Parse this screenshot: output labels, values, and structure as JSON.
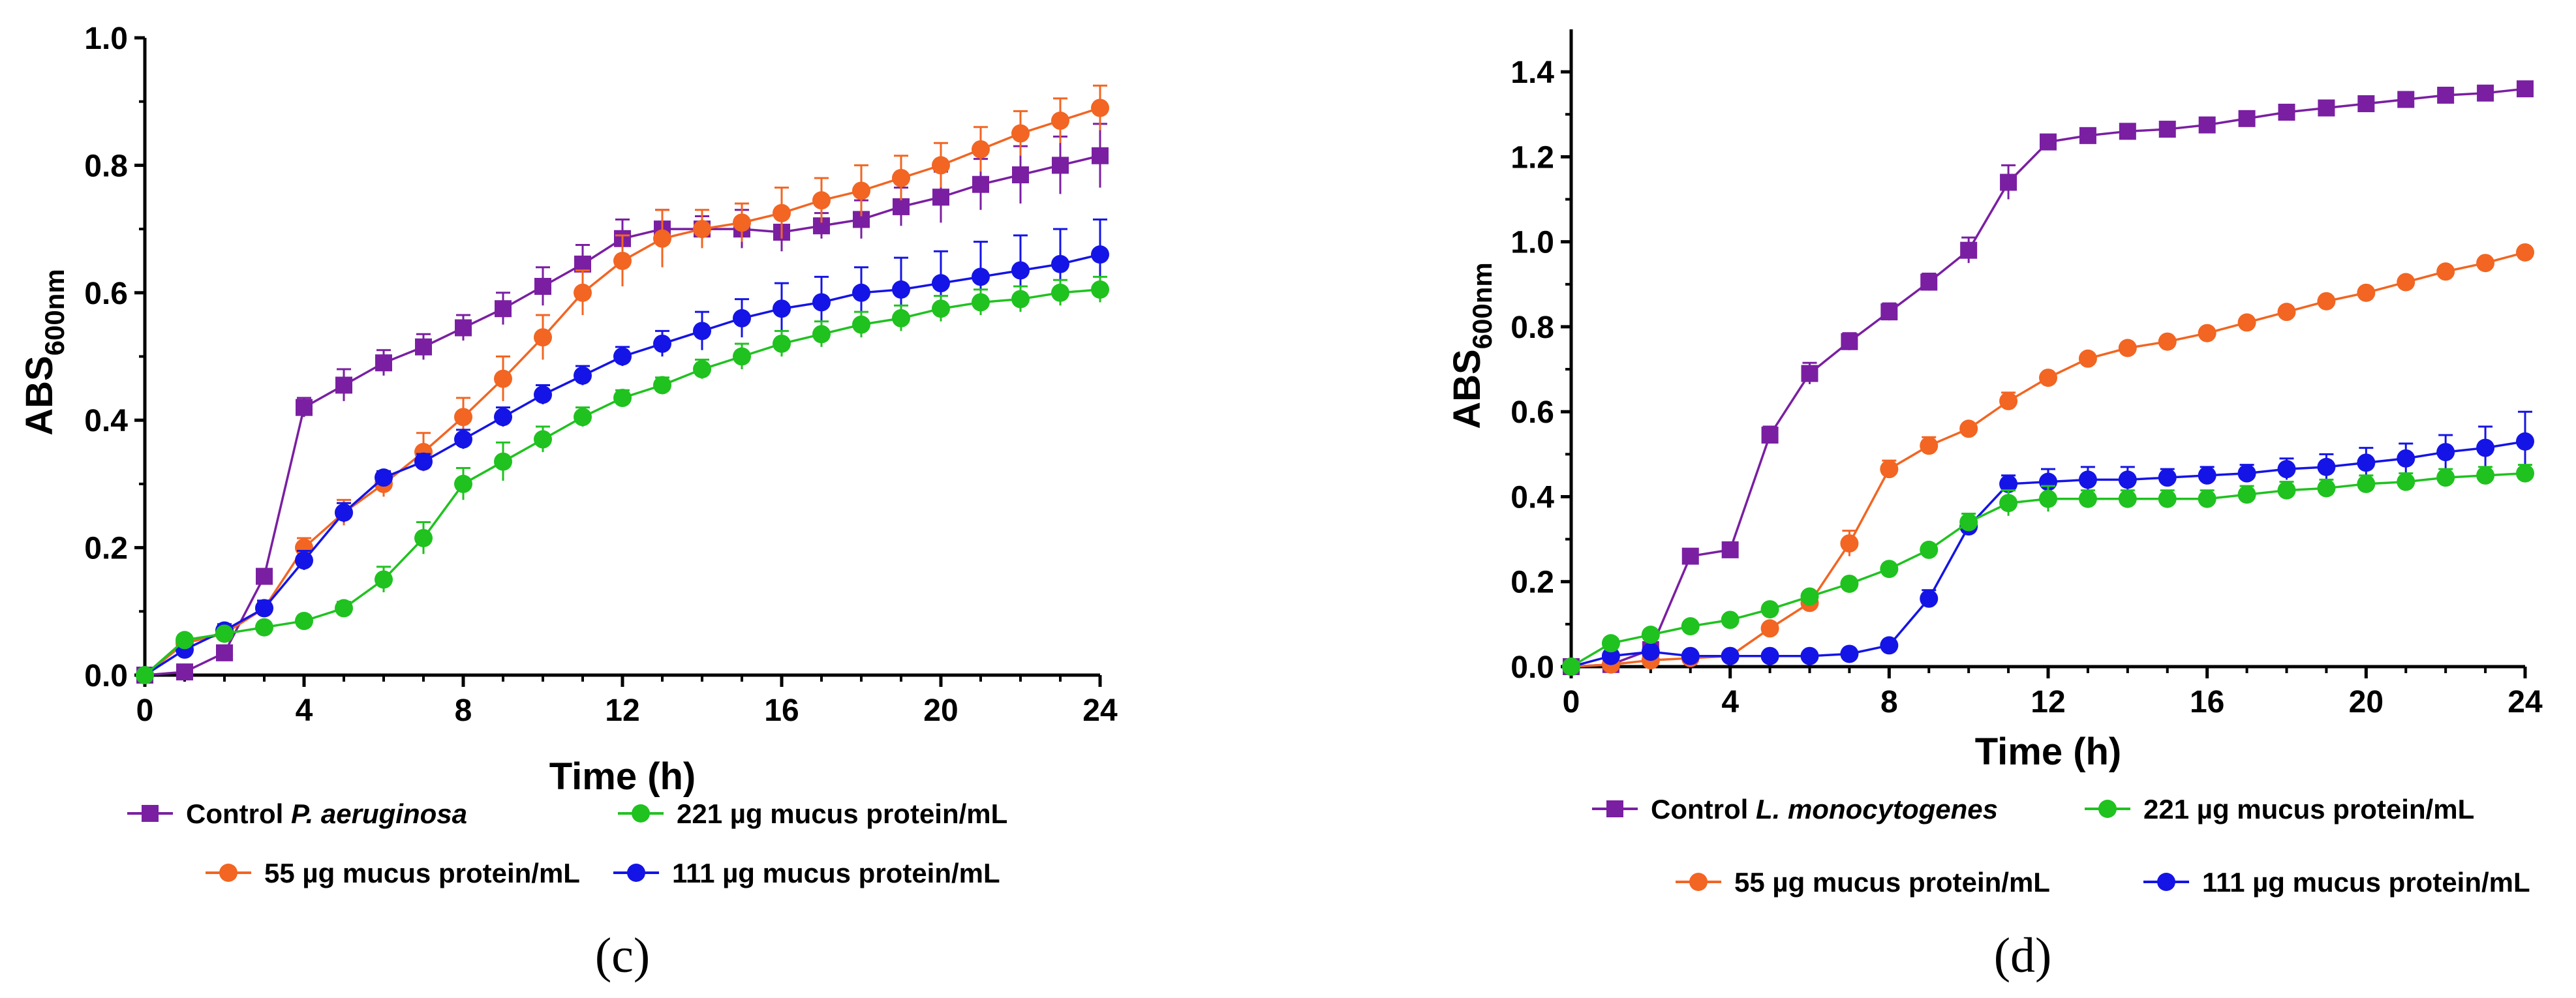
{
  "chart_data": [
    {
      "type": "line",
      "panel_label": "(c)",
      "xlabel": "Time (h)",
      "ylabel": {
        "main": "ABS",
        "sub": "600nm"
      },
      "xlim": [
        0,
        24
      ],
      "ylim": [
        0,
        1.0
      ],
      "xticks": [
        "0",
        "4",
        "8",
        "12",
        "16",
        "20",
        "24"
      ],
      "yticks": [
        "0.0",
        "0.2",
        "0.4",
        "0.6",
        "0.8",
        "1.0"
      ],
      "x": [
        0,
        1,
        2,
        3,
        4,
        5,
        6,
        7,
        8,
        9,
        10,
        11,
        12,
        13,
        14,
        15,
        16,
        17,
        18,
        19,
        20,
        21,
        22,
        23,
        24
      ],
      "legend": [
        {
          "series": 0,
          "prefix": "Control ",
          "italic": "P. aeruginosa"
        },
        {
          "series": 3,
          "prefix": "221 µg mucus protein/mL",
          "italic": ""
        },
        {
          "series": 1,
          "prefix": "55 µg mucus protein/mL",
          "italic": ""
        },
        {
          "series": 2,
          "prefix": "111 µg mucus protein/mL",
          "italic": ""
        }
      ],
      "series": [
        {
          "name": "Control P. aeruginosa",
          "color": "#7a1fa2",
          "marker": "square",
          "values": [
            0,
            0.005,
            0.035,
            0.155,
            0.42,
            0.455,
            0.49,
            0.515,
            0.545,
            0.575,
            0.61,
            0.645,
            0.685,
            0.7,
            0.7,
            0.7,
            0.695,
            0.705,
            0.715,
            0.735,
            0.75,
            0.77,
            0.785,
            0.8,
            0.815
          ],
          "errors": [
            0,
            0.005,
            0.008,
            0.01,
            0.015,
            0.025,
            0.02,
            0.02,
            0.02,
            0.025,
            0.03,
            0.03,
            0.03,
            0.03,
            0.02,
            0.03,
            0.03,
            0.02,
            0.03,
            0.03,
            0.04,
            0.04,
            0.045,
            0.045,
            0.05
          ]
        },
        {
          "name": "55 µg mucus protein/mL",
          "color": "#f26522",
          "marker": "circle",
          "values": [
            0,
            0.05,
            0.065,
            0.105,
            0.2,
            0.255,
            0.3,
            0.35,
            0.405,
            0.465,
            0.53,
            0.6,
            0.65,
            0.685,
            0.7,
            0.71,
            0.725,
            0.745,
            0.76,
            0.78,
            0.8,
            0.825,
            0.85,
            0.87,
            0.89
          ],
          "errors": [
            0,
            0.005,
            0.008,
            0.01,
            0.015,
            0.02,
            0.02,
            0.03,
            0.03,
            0.035,
            0.035,
            0.035,
            0.04,
            0.045,
            0.03,
            0.03,
            0.04,
            0.035,
            0.04,
            0.035,
            0.035,
            0.035,
            0.035,
            0.035,
            0.035
          ]
        },
        {
          "name": "111 µg mucus protein/mL",
          "color": "#1414e6",
          "marker": "circle",
          "values": [
            0,
            0.04,
            0.07,
            0.105,
            0.18,
            0.255,
            0.31,
            0.335,
            0.37,
            0.405,
            0.44,
            0.47,
            0.5,
            0.52,
            0.54,
            0.56,
            0.575,
            0.585,
            0.6,
            0.605,
            0.615,
            0.625,
            0.635,
            0.645,
            0.66
          ],
          "errors": [
            0,
            0.01,
            0.01,
            0.012,
            0.015,
            0.015,
            0.01,
            0.012,
            0.015,
            0.015,
            0.015,
            0.015,
            0.015,
            0.02,
            0.03,
            0.03,
            0.04,
            0.04,
            0.04,
            0.05,
            0.05,
            0.055,
            0.055,
            0.055,
            0.055
          ]
        },
        {
          "name": "221 µg mucus protein/mL",
          "color": "#1fc21f",
          "marker": "circle",
          "values": [
            0,
            0.055,
            0.065,
            0.075,
            0.085,
            0.105,
            0.15,
            0.215,
            0.3,
            0.335,
            0.37,
            0.405,
            0.435,
            0.455,
            0.48,
            0.5,
            0.52,
            0.535,
            0.55,
            0.56,
            0.575,
            0.585,
            0.59,
            0.6,
            0.605
          ],
          "errors": [
            0,
            0.008,
            0.008,
            0.008,
            0.008,
            0.01,
            0.02,
            0.025,
            0.025,
            0.03,
            0.02,
            0.015,
            0.012,
            0.012,
            0.015,
            0.02,
            0.02,
            0.02,
            0.02,
            0.02,
            0.02,
            0.02,
            0.02,
            0.02,
            0.02
          ]
        }
      ]
    },
    {
      "type": "line",
      "panel_label": "(d)",
      "xlabel": "Time (h)",
      "ylabel": {
        "main": "ABS",
        "sub": "600nm"
      },
      "xlim": [
        0,
        24
      ],
      "ylim": [
        0,
        1.5
      ],
      "xticks": [
        "0",
        "4",
        "8",
        "12",
        "16",
        "20",
        "24"
      ],
      "yticks": [
        "0.0",
        "0.2",
        "0.4",
        "0.6",
        "0.8",
        "1.0",
        "1.2",
        "1.4"
      ],
      "x": [
        0,
        1,
        2,
        3,
        4,
        5,
        6,
        7,
        8,
        9,
        10,
        11,
        12,
        13,
        14,
        15,
        16,
        17,
        18,
        19,
        20,
        21,
        22,
        23,
        24
      ],
      "legend": [
        {
          "series": 0,
          "prefix": "Control ",
          "italic": "L. monocytogenes"
        },
        {
          "series": 3,
          "prefix": "221 µg mucus protein/mL",
          "italic": ""
        },
        {
          "series": 1,
          "prefix": "55 µg mucus protein/mL",
          "italic": ""
        },
        {
          "series": 2,
          "prefix": "111 µg mucus protein/mL",
          "italic": ""
        }
      ],
      "series": [
        {
          "name": "Control L. monocytogenes",
          "color": "#7a1fa2",
          "marker": "square",
          "values": [
            0,
            0.005,
            0.04,
            0.26,
            0.275,
            0.545,
            0.69,
            0.765,
            0.835,
            0.905,
            0.98,
            1.14,
            1.235,
            1.25,
            1.26,
            1.265,
            1.275,
            1.29,
            1.305,
            1.315,
            1.325,
            1.335,
            1.345,
            1.35,
            1.36
          ],
          "errors": [
            0,
            0.005,
            0.005,
            0.01,
            0.01,
            0.02,
            0.025,
            0.02,
            0.02,
            0.02,
            0.03,
            0.04,
            0.015,
            0.01,
            0.01,
            0.01,
            0.01,
            0.01,
            0.01,
            0.01,
            0.01,
            0.01,
            0.01,
            0.01,
            0.01
          ]
        },
        {
          "name": "55 µg mucus protein/mL",
          "color": "#f26522",
          "marker": "circle",
          "values": [
            0,
            0.005,
            0.015,
            0.02,
            0.025,
            0.09,
            0.15,
            0.29,
            0.465,
            0.52,
            0.56,
            0.625,
            0.68,
            0.725,
            0.75,
            0.765,
            0.785,
            0.81,
            0.835,
            0.86,
            0.88,
            0.905,
            0.93,
            0.95,
            0.975
          ],
          "errors": [
            0,
            0.005,
            0.005,
            0.005,
            0.005,
            0.01,
            0.01,
            0.03,
            0.02,
            0.02,
            0.01,
            0.02,
            0.01,
            0.01,
            0.01,
            0.01,
            0.01,
            0.01,
            0.01,
            0.01,
            0.01,
            0.01,
            0.01,
            0.01,
            0.01
          ]
        },
        {
          "name": "111 µg mucus protein/mL",
          "color": "#1414e6",
          "marker": "circle",
          "values": [
            0,
            0.025,
            0.035,
            0.025,
            0.025,
            0.025,
            0.025,
            0.03,
            0.05,
            0.16,
            0.33,
            0.43,
            0.435,
            0.44,
            0.44,
            0.445,
            0.45,
            0.455,
            0.465,
            0.47,
            0.48,
            0.49,
            0.505,
            0.515,
            0.53
          ],
          "errors": [
            0,
            0.005,
            0.005,
            0.005,
            0.005,
            0.005,
            0.005,
            0.005,
            0.005,
            0.02,
            0.02,
            0.02,
            0.03,
            0.03,
            0.03,
            0.02,
            0.02,
            0.02,
            0.025,
            0.03,
            0.035,
            0.035,
            0.04,
            0.05,
            0.07
          ]
        },
        {
          "name": "221 µg mucus protein/mL",
          "color": "#1fc21f",
          "marker": "circle",
          "values": [
            0,
            0.055,
            0.075,
            0.095,
            0.11,
            0.135,
            0.165,
            0.195,
            0.23,
            0.275,
            0.34,
            0.385,
            0.395,
            0.395,
            0.395,
            0.395,
            0.395,
            0.405,
            0.415,
            0.42,
            0.43,
            0.435,
            0.445,
            0.45,
            0.455
          ],
          "errors": [
            0,
            0.005,
            0.005,
            0.005,
            0.005,
            0.005,
            0.01,
            0.01,
            0.01,
            0.01,
            0.02,
            0.03,
            0.03,
            0.02,
            0.02,
            0.02,
            0.02,
            0.02,
            0.02,
            0.02,
            0.02,
            0.02,
            0.02,
            0.02,
            0.02
          ]
        }
      ]
    }
  ]
}
